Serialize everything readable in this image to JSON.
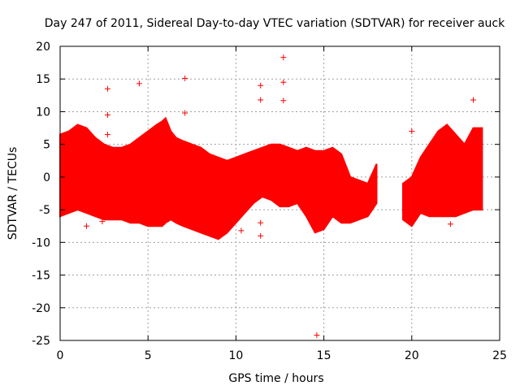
{
  "chart_data": {
    "type": "scatter",
    "title": "Day 247 of 2011, Sidereal Day-to-day VTEC variation (SDTVAR) for receiver auck",
    "xlabel": "GPS time / hours",
    "ylabel": "SDTVAR / TECUs",
    "xlim": [
      0,
      25
    ],
    "ylim": [
      -25,
      20
    ],
    "x_ticks": [
      0,
      5,
      10,
      15,
      20,
      25
    ],
    "y_ticks": [
      -25,
      -20,
      -15,
      -10,
      -5,
      0,
      5,
      10,
      15,
      20
    ],
    "grid": true,
    "marker": "+",
    "color": "#ff0000",
    "series": [
      {
        "name": "SDTVAR",
        "envelope": {
          "x": [
            0.0,
            0.5,
            1.0,
            1.5,
            2.0,
            2.5,
            3.0,
            3.5,
            4.0,
            4.5,
            5.0,
            5.5,
            5.8,
            6.0,
            6.3,
            6.6,
            7.0,
            7.5,
            8.0,
            8.5,
            9.0,
            9.5,
            10.0,
            10.5,
            11.0,
            11.5,
            12.0,
            12.5,
            13.0,
            13.5,
            14.0,
            14.5,
            15.0,
            15.5,
            16.0,
            16.5,
            17.0,
            17.5,
            18.0
          ],
          "upper": [
            6.5,
            7.0,
            8.0,
            7.5,
            6.0,
            5.0,
            4.5,
            4.5,
            5.0,
            6.0,
            7.0,
            8.0,
            8.5,
            9.0,
            7.0,
            6.0,
            5.5,
            5.0,
            4.5,
            3.5,
            3.0,
            2.5,
            3.0,
            3.5,
            4.0,
            4.5,
            5.0,
            5.0,
            4.5,
            4.0,
            4.5,
            4.0,
            4.0,
            4.5,
            3.5,
            0.0,
            -0.5,
            -1.0,
            2.0
          ],
          "lower": [
            -6.0,
            -5.5,
            -5.0,
            -5.5,
            -6.0,
            -6.5,
            -6.5,
            -6.5,
            -7.0,
            -7.0,
            -7.5,
            -7.5,
            -7.5,
            -7.0,
            -6.5,
            -7.0,
            -7.5,
            -8.0,
            -8.5,
            -9.0,
            -9.5,
            -8.5,
            -7.0,
            -5.5,
            -4.0,
            -3.0,
            -3.5,
            -4.5,
            -4.5,
            -4.0,
            -6.0,
            -8.5,
            -8.0,
            -6.0,
            -7.0,
            -7.0,
            -6.5,
            -6.0,
            -4.0
          ]
        },
        "envelope2": {
          "x": [
            19.5,
            20.0,
            20.5,
            21.0,
            21.5,
            22.0,
            22.5,
            23.0,
            23.5,
            24.0
          ],
          "upper": [
            -1.0,
            0.0,
            3.0,
            5.0,
            7.0,
            8.0,
            6.5,
            5.0,
            7.5,
            7.5
          ],
          "lower": [
            -6.5,
            -7.5,
            -5.5,
            -6.0,
            -6.0,
            -6.0,
            -6.0,
            -5.5,
            -5.0,
            -5.0
          ]
        },
        "outliers": [
          {
            "x": 2.7,
            "y": 13.5
          },
          {
            "x": 2.7,
            "y": 9.5
          },
          {
            "x": 2.7,
            "y": 6.5
          },
          {
            "x": 4.5,
            "y": 14.3
          },
          {
            "x": 7.1,
            "y": 15.1
          },
          {
            "x": 7.1,
            "y": 9.8
          },
          {
            "x": 11.4,
            "y": 14.0
          },
          {
            "x": 11.4,
            "y": 11.8
          },
          {
            "x": 11.4,
            "y": -7.0
          },
          {
            "x": 11.4,
            "y": -9.0
          },
          {
            "x": 12.7,
            "y": 18.3
          },
          {
            "x": 12.7,
            "y": 14.5
          },
          {
            "x": 12.7,
            "y": 11.7
          },
          {
            "x": 14.6,
            "y": -24.2
          },
          {
            "x": 23.5,
            "y": 11.8
          },
          {
            "x": 1.5,
            "y": -7.5
          },
          {
            "x": 2.4,
            "y": -6.8
          },
          {
            "x": 10.3,
            "y": -8.2
          },
          {
            "x": 22.2,
            "y": -7.2
          },
          {
            "x": 20.0,
            "y": 7.0
          }
        ]
      }
    ]
  }
}
